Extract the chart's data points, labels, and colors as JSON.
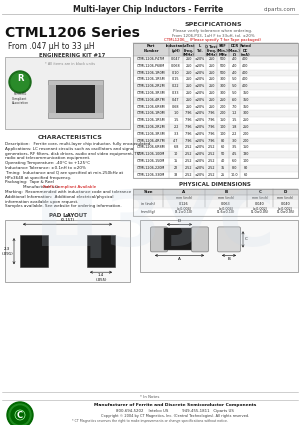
{
  "title_top": "Multi-layer Chip Inductors - Ferrite",
  "website": "ciparts.com",
  "series_title": "CTML1206 Series",
  "series_subtitle": "From .047 μH to 33 μH",
  "eng_kit": "ENGINEERING KIT #17",
  "specs_title": "SPECIFICATIONS",
  "specs_note1": "Please verify tolerance when ordering.",
  "specs_note2": "From 1206-P33, 1uH F to 33uH, tol. ±20%",
  "specs_note3": "CTML1206__ (Please specify T for Tape packaged)",
  "char_title": "CHARACTERISTICS",
  "char_desc": "Description:   Ferrite core, multi-layer chip inductor, fully encapsulated.",
  "char_app1": "Applications: LC resonant circuits such as oscillators and signal",
  "char_app2": "generators, RF filters, disk drives, audio and video equipment, TV,",
  "char_app3": "radio and telecommunication equipment.",
  "char_op": "Operating Temperature: -40°C to +125°C",
  "char_ind": "Inductance Tolerance: ±0.1nH to ±20%",
  "char_timing1": "Timing:  Inductance and Q are specified at min.250kHz at",
  "char_timing2": "HPx3648 at specified frequency.",
  "char_pkg": "Packaging:  Tape & Reel",
  "char_rohs_prefix": "Manufacturer use :",
  "char_rohs": "RoHS Compliant Available",
  "char_mark": "Marking:  Recommended with inductance code and tolerance",
  "char_add1": "Additional Information:  Additional electrical/physical",
  "char_add2": "information available upon request.",
  "char_samp": "Samples available. See website for ordering information.",
  "pad_title": "PAD LAYOUT",
  "phys_title": "PHYSICAL DIMENSIONS",
  "bg_color": "#ffffff",
  "rohs_color": "#cc0000",
  "spec_cols": [
    "Part\nNumber",
    "Inductance\n(μH)",
    "L Test\nFreq.\n(MHz)",
    "L\nTol.",
    "Q Test\nFreq.\n(MHz)",
    "SRF\n(Min.)\nMHz",
    "DCR\n(Max.)\nΩ",
    "Rated\nDC\n(mA)"
  ],
  "spec_rows": [
    [
      "CTML1206-P47M",
      "0.047",
      "250",
      "±20%",
      "250",
      "500",
      ".40",
      "400"
    ],
    [
      "CTML1206-P68M",
      "0.068",
      "250",
      "±20%",
      "250",
      "500",
      ".40",
      "400"
    ],
    [
      "CTML1206-1R0M",
      "0.10",
      "250",
      "±20%",
      "250",
      "500",
      ".40",
      "400"
    ],
    [
      "CTML1206-1R5M",
      "0.15",
      "250",
      "±20%",
      "250",
      "300",
      ".50",
      "400"
    ],
    [
      "CTML1206-2R2M",
      "0.22",
      "250",
      "±20%",
      "250",
      "300",
      ".50",
      "400"
    ],
    [
      "CTML1206-3R3M",
      "0.33",
      "250",
      "±20%",
      "250",
      "300",
      ".50",
      "350"
    ],
    [
      "CTML1206-4R7M",
      "0.47",
      "250",
      "±20%",
      "250",
      "250",
      ".60",
      "350"
    ],
    [
      "CTML1206-6R8M",
      "0.68",
      "250",
      "±20%",
      "250",
      "200",
      ".70",
      "350"
    ],
    [
      "CTML1206-1R0M",
      "1.0",
      "7.96",
      "±20%",
      "7.96",
      "200",
      "1.2",
      "300"
    ],
    [
      "CTML1206-1R5M",
      "1.5",
      "7.96",
      "±20%",
      "7.96",
      "150",
      "1.5",
      "250"
    ],
    [
      "CTML1206-2R2M",
      "2.2",
      "7.96",
      "±20%",
      "7.96",
      "100",
      "1.8",
      "250"
    ],
    [
      "CTML1206-3R3M",
      "3.3",
      "7.96",
      "±20%",
      "7.96",
      "100",
      "2.2",
      "200"
    ],
    [
      "CTML1206-4R7M",
      "4.7",
      "7.96",
      "±20%",
      "7.96",
      "80",
      "3.0",
      "200"
    ],
    [
      "CTML1206-6R8M",
      "6.8",
      "2.52",
      "±20%",
      "2.52",
      "60",
      "3.5",
      "150"
    ],
    [
      "CTML1206-100M",
      "10",
      "2.52",
      "±20%",
      "2.52",
      "50",
      "4.5",
      "130"
    ],
    [
      "CTML1206-150M",
      "15",
      "2.52",
      "±20%",
      "2.52",
      "40",
      "6.0",
      "100"
    ],
    [
      "CTML1206-220M",
      "22",
      "2.52",
      "±20%",
      "2.52",
      "35",
      "8.0",
      "80"
    ],
    [
      "CTML1206-330M",
      "33",
      "2.52",
      "±20%",
      "2.52",
      "25",
      "10.0",
      "60"
    ]
  ],
  "phys_cols": [
    "Size",
    "A",
    "B",
    "C",
    "D"
  ],
  "phys_col_sub": [
    "",
    "mm (inch)",
    "mm (inch)",
    "mm (inch)",
    "mm (inch)"
  ],
  "phys_rows": [
    [
      "in (inch)",
      "0.126\n(±0.004)",
      "0.063\n(±0.004)",
      "0.040\n(±0.002)",
      "0.040\n(±0.002)"
    ],
    [
      "(mm)/(g)",
      "(3.2±0.10)",
      "(1.6±0.10)",
      "(1.0±0.05)",
      "(1.0±0.05)"
    ]
  ],
  "pad_total_w": "4.0\n(0.157)",
  "pad_pad_w": "1.4\n(.055)",
  "pad_height": "2.3\n(.091)",
  "footer_note0": "* In Notes",
  "footer_line1": "Manufacturer of Ferrite and Discrete Semiconductor Components",
  "footer_addr1": "800-694-5202    Intelco US           949-455-1811   Ciparts US",
  "footer_addr2": "Copyright © 2004 by CT Magnetics, Inc. (Central Technologies). All rights reserved.",
  "footer_note": "* CT Magnetics reserves the right to make improvements or change specifications without notice.",
  "footer_logo_text": "CIPARTS"
}
